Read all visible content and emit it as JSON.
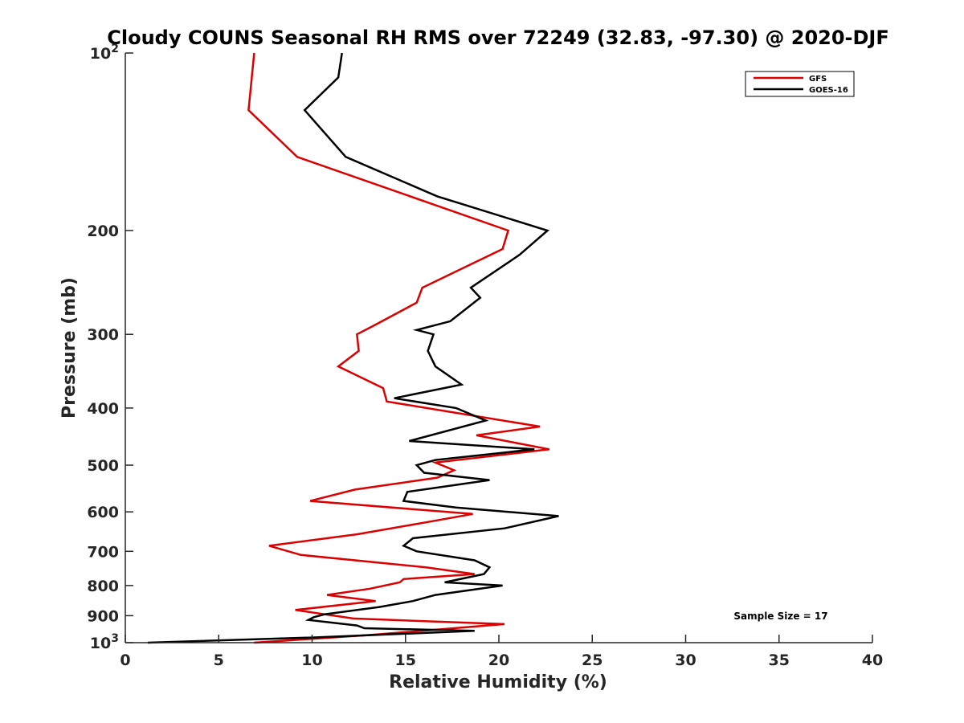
{
  "chart_data": {
    "type": "line",
    "title": "Cloudy COUNS Seasonal RH RMS over 72249 (32.83, -97.30) @ 2020-DJF",
    "xlabel": "Relative Humidity (%)",
    "ylabel": "Pressure (mb)",
    "xlim": [
      0,
      40
    ],
    "ylim": [
      100,
      1000
    ],
    "yscale": "log",
    "y_reversed": true,
    "xticks": [
      0,
      5,
      10,
      15,
      20,
      25,
      30,
      35,
      40
    ],
    "xtick_labels": [
      "0",
      "5",
      "10",
      "15",
      "20",
      "25",
      "30",
      "35",
      "40"
    ],
    "yticks": [
      100,
      200,
      300,
      400,
      500,
      600,
      700,
      800,
      900,
      1000
    ],
    "ytick_labels": [
      {
        "base": "10",
        "exp": "2"
      },
      {
        "base": "200",
        "exp": ""
      },
      {
        "base": "300",
        "exp": ""
      },
      {
        "base": "400",
        "exp": ""
      },
      {
        "base": "500",
        "exp": ""
      },
      {
        "base": "600",
        "exp": ""
      },
      {
        "base": "700",
        "exp": ""
      },
      {
        "base": "800",
        "exp": ""
      },
      {
        "base": "900",
        "exp": ""
      },
      {
        "base": "10",
        "exp": "3"
      }
    ],
    "grid": false,
    "legend_position": "top-right",
    "annotation": "Sample Size = 17",
    "series": [
      {
        "name": "GFS",
        "color": "#dd0000",
        "points": [
          [
            6.9,
            100
          ],
          [
            6.6,
            125
          ],
          [
            9.2,
            150
          ],
          [
            20.5,
            200
          ],
          [
            20.2,
            215
          ],
          [
            15.9,
            250
          ],
          [
            15.6,
            265
          ],
          [
            13.3,
            290
          ],
          [
            12.4,
            300
          ],
          [
            12.5,
            320
          ],
          [
            11.4,
            340
          ],
          [
            13.8,
            370
          ],
          [
            14.0,
            390
          ],
          [
            22.2,
            430
          ],
          [
            18.8,
            445
          ],
          [
            22.7,
            470
          ],
          [
            16.6,
            495
          ],
          [
            17.6,
            510
          ],
          [
            16.7,
            525
          ],
          [
            12.3,
            550
          ],
          [
            9.9,
            575
          ],
          [
            18.6,
            605
          ],
          [
            16.1,
            625
          ],
          [
            12.4,
            655
          ],
          [
            7.7,
            685
          ],
          [
            9.4,
            710
          ],
          [
            16.1,
            745
          ],
          [
            18.7,
            765
          ],
          [
            14.9,
            780
          ],
          [
            14.7,
            790
          ],
          [
            13.1,
            810
          ],
          [
            10.8,
            830
          ],
          [
            13.4,
            850
          ],
          [
            9.1,
            880
          ],
          [
            12.2,
            910
          ],
          [
            20.3,
            930
          ],
          [
            13.2,
            970
          ],
          [
            6.9,
            1000
          ]
        ]
      },
      {
        "name": "GOES-16",
        "color": "#000000",
        "points": [
          [
            11.6,
            100
          ],
          [
            11.4,
            110
          ],
          [
            9.6,
            125
          ],
          [
            11.8,
            150
          ],
          [
            16.7,
            175
          ],
          [
            22.6,
            200
          ],
          [
            21.1,
            220
          ],
          [
            18.5,
            250
          ],
          [
            19.0,
            260
          ],
          [
            17.4,
            285
          ],
          [
            15.6,
            295
          ],
          [
            16.5,
            300
          ],
          [
            16.2,
            320
          ],
          [
            16.6,
            340
          ],
          [
            18.0,
            365
          ],
          [
            14.4,
            385
          ],
          [
            17.7,
            400
          ],
          [
            19.3,
            420
          ],
          [
            15.2,
            455
          ],
          [
            21.9,
            470
          ],
          [
            16.6,
            490
          ],
          [
            15.6,
            500
          ],
          [
            16.0,
            515
          ],
          [
            19.5,
            530
          ],
          [
            15.1,
            555
          ],
          [
            14.9,
            575
          ],
          [
            17.7,
            590
          ],
          [
            23.2,
            610
          ],
          [
            20.3,
            640
          ],
          [
            15.4,
            665
          ],
          [
            14.9,
            685
          ],
          [
            15.6,
            700
          ],
          [
            18.7,
            725
          ],
          [
            19.5,
            745
          ],
          [
            19.2,
            765
          ],
          [
            17.1,
            790
          ],
          [
            20.2,
            800
          ],
          [
            16.6,
            830
          ],
          [
            15.4,
            850
          ],
          [
            13.6,
            870
          ],
          [
            10.7,
            895
          ],
          [
            10.1,
            905
          ],
          [
            9.8,
            915
          ],
          [
            12.4,
            935
          ],
          [
            12.8,
            945
          ],
          [
            18.7,
            955
          ],
          [
            10.0,
            980
          ],
          [
            1.2,
            1000
          ]
        ]
      }
    ]
  }
}
